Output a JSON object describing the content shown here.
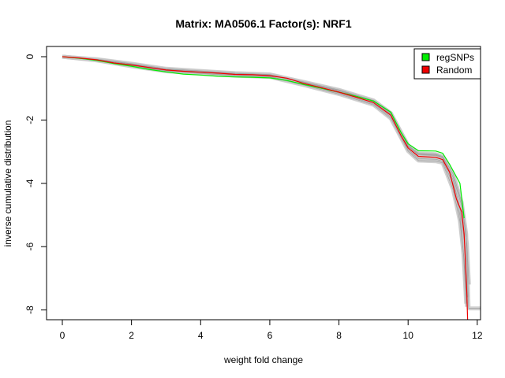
{
  "chart_data": {
    "type": "line",
    "title": "Matrix: MA0506.1 Factor(s): NRF1",
    "xlabel": "weight fold change",
    "ylabel": "inverse cumulative distribution",
    "xlim": [
      -0.4,
      12.1
    ],
    "ylim": [
      -8.3,
      0.3
    ],
    "x_ticks": [
      0,
      2,
      4,
      6,
      8,
      10,
      12
    ],
    "y_ticks": [
      0,
      -2,
      -4,
      -6,
      -8
    ],
    "legend_position": "top-right",
    "band_color": "#c8c8c8",
    "series": [
      {
        "name": "regSNPs",
        "color": "#00ee00",
        "points": [
          [
            0.0,
            0.0
          ],
          [
            0.5,
            -0.05
          ],
          [
            1.0,
            -0.12
          ],
          [
            1.5,
            -0.22
          ],
          [
            2.0,
            -0.3
          ],
          [
            2.5,
            -0.4
          ],
          [
            3.0,
            -0.48
          ],
          [
            3.5,
            -0.55
          ],
          [
            4.0,
            -0.58
          ],
          [
            4.5,
            -0.62
          ],
          [
            5.0,
            -0.64
          ],
          [
            5.5,
            -0.65
          ],
          [
            6.0,
            -0.67
          ],
          [
            6.5,
            -0.75
          ],
          [
            7.0,
            -0.88
          ],
          [
            7.5,
            -1.0
          ],
          [
            8.0,
            -1.12
          ],
          [
            8.5,
            -1.25
          ],
          [
            9.0,
            -1.4
          ],
          [
            9.5,
            -1.75
          ],
          [
            9.8,
            -2.4
          ],
          [
            10.0,
            -2.75
          ],
          [
            10.3,
            -2.97
          ],
          [
            10.8,
            -2.98
          ],
          [
            11.0,
            -3.05
          ],
          [
            11.2,
            -3.4
          ],
          [
            11.5,
            -4.0
          ],
          [
            11.62,
            -5.1
          ]
        ]
      },
      {
        "name": "Random",
        "color": "#ee0000",
        "points": [
          [
            0.0,
            0.0
          ],
          [
            0.5,
            -0.04
          ],
          [
            1.0,
            -0.1
          ],
          [
            1.5,
            -0.2
          ],
          [
            2.0,
            -0.26
          ],
          [
            2.5,
            -0.34
          ],
          [
            3.0,
            -0.42
          ],
          [
            3.5,
            -0.46
          ],
          [
            4.0,
            -0.49
          ],
          [
            4.5,
            -0.52
          ],
          [
            5.0,
            -0.56
          ],
          [
            5.5,
            -0.57
          ],
          [
            6.0,
            -0.6
          ],
          [
            6.5,
            -0.68
          ],
          [
            7.0,
            -0.85
          ],
          [
            7.5,
            -0.98
          ],
          [
            8.0,
            -1.12
          ],
          [
            8.5,
            -1.28
          ],
          [
            9.0,
            -1.45
          ],
          [
            9.5,
            -1.85
          ],
          [
            9.8,
            -2.5
          ],
          [
            10.0,
            -2.88
          ],
          [
            10.3,
            -3.15
          ],
          [
            10.8,
            -3.18
          ],
          [
            11.0,
            -3.25
          ],
          [
            11.2,
            -3.65
          ],
          [
            11.4,
            -4.5
          ],
          [
            11.55,
            -4.9
          ],
          [
            11.62,
            -5.6
          ],
          [
            11.7,
            -7.5
          ],
          [
            11.72,
            -8.3
          ]
        ]
      }
    ],
    "band_lines": [
      [
        [
          0.0,
          0.0
        ],
        [
          1.0,
          -0.08
        ],
        [
          2.0,
          -0.22
        ],
        [
          3.0,
          -0.38
        ],
        [
          4.0,
          -0.45
        ],
        [
          5.0,
          -0.52
        ],
        [
          6.0,
          -0.56
        ],
        [
          7.0,
          -0.8
        ],
        [
          8.0,
          -1.05
        ],
        [
          9.0,
          -1.38
        ],
        [
          9.5,
          -1.78
        ],
        [
          10.0,
          -2.8
        ],
        [
          10.3,
          -3.05
        ],
        [
          10.8,
          -3.08
        ],
        [
          11.0,
          -3.15
        ],
        [
          11.3,
          -3.7
        ],
        [
          11.55,
          -4.6
        ],
        [
          11.68,
          -5.6
        ],
        [
          11.75,
          -7.95
        ],
        [
          12.1,
          -7.95
        ]
      ],
      [
        [
          0.0,
          0.0
        ],
        [
          1.0,
          -0.12
        ],
        [
          2.0,
          -0.3
        ],
        [
          3.0,
          -0.46
        ],
        [
          4.0,
          -0.53
        ],
        [
          5.0,
          -0.6
        ],
        [
          6.0,
          -0.64
        ],
        [
          7.0,
          -0.9
        ],
        [
          8.0,
          -1.18
        ],
        [
          9.0,
          -1.52
        ],
        [
          9.5,
          -1.95
        ],
        [
          10.0,
          -2.98
        ],
        [
          10.3,
          -3.28
        ],
        [
          10.8,
          -3.3
        ],
        [
          11.0,
          -3.35
        ],
        [
          11.3,
          -4.2
        ],
        [
          11.5,
          -5.2
        ],
        [
          11.62,
          -6.4
        ],
        [
          11.7,
          -7.9
        ]
      ],
      [
        [
          0.0,
          0.0
        ],
        [
          1.0,
          -0.1
        ],
        [
          2.0,
          -0.25
        ],
        [
          3.0,
          -0.41
        ],
        [
          4.0,
          -0.48
        ],
        [
          5.0,
          -0.55
        ],
        [
          6.0,
          -0.58
        ],
        [
          7.0,
          -0.83
        ],
        [
          8.0,
          -1.08
        ],
        [
          9.0,
          -1.42
        ],
        [
          9.5,
          -1.82
        ],
        [
          10.0,
          -2.84
        ],
        [
          10.3,
          -3.1
        ],
        [
          10.8,
          -3.12
        ],
        [
          11.0,
          -3.2
        ],
        [
          11.3,
          -3.9
        ],
        [
          11.5,
          -4.8
        ],
        [
          11.65,
          -6.0
        ],
        [
          11.72,
          -7.6
        ]
      ],
      [
        [
          0.0,
          0.0
        ],
        [
          1.0,
          -0.11
        ],
        [
          2.0,
          -0.28
        ],
        [
          3.0,
          -0.44
        ],
        [
          4.0,
          -0.51
        ],
        [
          5.0,
          -0.58
        ],
        [
          6.0,
          -0.62
        ],
        [
          7.0,
          -0.87
        ],
        [
          8.0,
          -1.15
        ],
        [
          9.0,
          -1.49
        ],
        [
          9.5,
          -1.9
        ],
        [
          10.0,
          -2.93
        ],
        [
          10.3,
          -3.22
        ],
        [
          10.8,
          -3.24
        ],
        [
          11.0,
          -3.3
        ],
        [
          11.3,
          -4.0
        ],
        [
          11.5,
          -5.0
        ],
        [
          11.6,
          -6.2
        ],
        [
          11.68,
          -7.8
        ]
      ],
      [
        [
          0.0,
          0.0
        ],
        [
          1.0,
          -0.09
        ],
        [
          2.0,
          -0.24
        ],
        [
          3.0,
          -0.4
        ],
        [
          4.0,
          -0.47
        ],
        [
          5.0,
          -0.54
        ],
        [
          6.0,
          -0.57
        ],
        [
          7.0,
          -0.82
        ],
        [
          8.0,
          -1.07
        ],
        [
          9.0,
          -1.4
        ],
        [
          9.5,
          -1.8
        ],
        [
          10.0,
          -2.82
        ],
        [
          10.3,
          -3.08
        ],
        [
          10.8,
          -3.1
        ],
        [
          11.0,
          -3.18
        ],
        [
          11.3,
          -3.8
        ],
        [
          11.55,
          -4.7
        ],
        [
          11.7,
          -5.9
        ],
        [
          11.76,
          -7.2
        ]
      ]
    ]
  }
}
